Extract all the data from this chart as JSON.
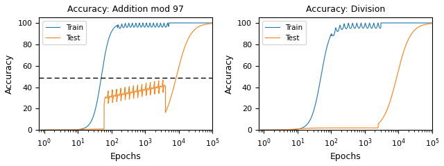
{
  "title_left": "Accuracy: Addition mod 97",
  "title_right": "Accuracy: Division",
  "xlabel": "Epochs",
  "ylabel": "Accuracy",
  "xlim": [
    0.7,
    100000
  ],
  "ylim": [
    0,
    105
  ],
  "yticks": [
    0,
    20,
    40,
    60,
    80,
    100
  ],
  "dashed_line_y": 48.5,
  "train_color": "#1f77b4",
  "test_color": "#ff7f0e",
  "legend_labels": [
    "Train",
    "Test"
  ],
  "figsize": [
    6.4,
    2.39
  ],
  "dpi": 100
}
